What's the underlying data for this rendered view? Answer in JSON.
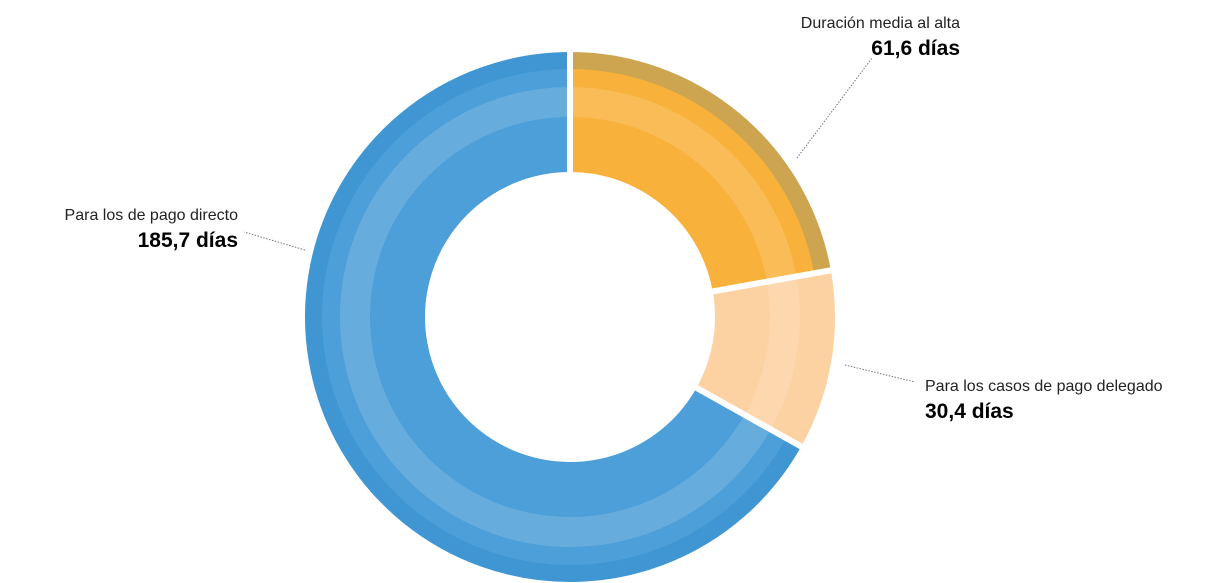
{
  "chart_data": {
    "type": "pie",
    "categories": [
      "Duración media al alta",
      "Para los casos de pago delegado",
      "Para los de pago directo"
    ],
    "values": [
      61.6,
      30.4,
      185.7
    ],
    "value_labels": [
      "61,6 días",
      "30,4 días",
      "185,7  días"
    ],
    "colors": [
      "#f8b13a",
      "#fdd2a2",
      "#4c9fd8"
    ],
    "donut": true
  }
}
